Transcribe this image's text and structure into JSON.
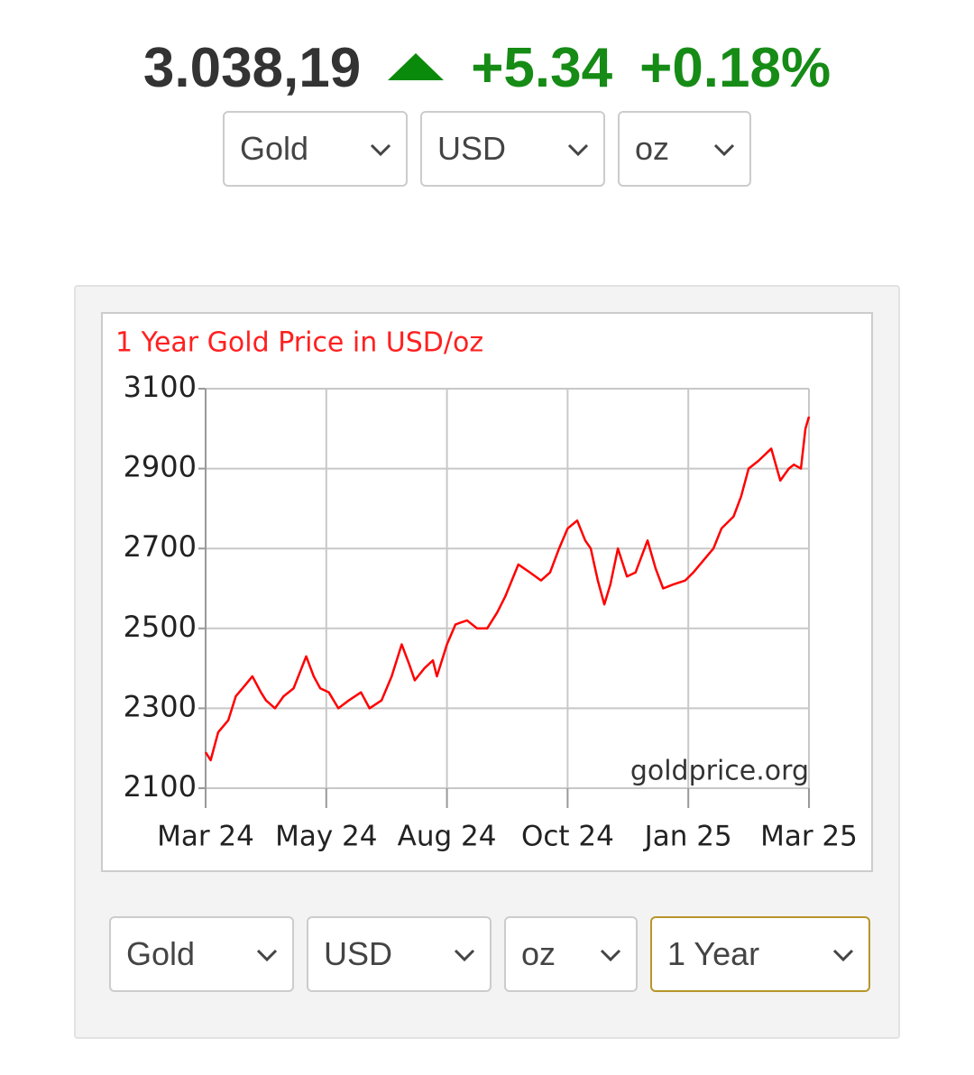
{
  "header": {
    "price": "3.038,19",
    "change": "+5.34",
    "change_percent": "+0.18%"
  },
  "top_selects": [
    "Gold",
    "USD",
    "oz"
  ],
  "bottom_selects": [
    "Gold",
    "USD",
    "oz",
    "1 Year"
  ],
  "chart_data": {
    "type": "line",
    "title": "1 Year Gold Price in USD/oz",
    "watermark": "goldprice.org",
    "x": [
      0,
      0.1,
      0.25,
      0.45,
      0.6,
      0.8,
      0.93,
      1.1,
      1.2,
      1.38,
      1.55,
      1.75,
      2.0,
      2.15,
      2.28,
      2.45,
      2.64,
      2.85,
      3.09,
      3.26,
      3.5,
      3.7,
      3.9,
      4.05,
      4.16,
      4.35,
      4.52,
      4.6,
      4.8,
      4.97,
      5.2,
      5.4,
      5.6,
      5.8,
      5.96,
      6.22,
      6.45,
      6.67,
      6.85,
      7.03,
      7.2,
      7.39,
      7.55,
      7.66,
      7.8,
      7.93,
      8.05,
      8.2,
      8.38,
      8.55,
      8.79,
      8.95,
      9.1,
      9.3,
      9.54,
      9.7,
      9.9,
      10.1,
      10.26,
      10.5,
      10.65,
      10.8,
      11.0,
      11.25,
      11.43,
      11.6,
      11.7,
      11.84,
      11.93,
      12
    ],
    "values": [
      2190,
      2170,
      2240,
      2270,
      2330,
      2360,
      2380,
      2340,
      2320,
      2300,
      2330,
      2350,
      2430,
      2380,
      2350,
      2340,
      2300,
      2320,
      2340,
      2300,
      2320,
      2380,
      2460,
      2410,
      2370,
      2400,
      2420,
      2380,
      2460,
      2510,
      2520,
      2500,
      2500,
      2540,
      2580,
      2660,
      2640,
      2620,
      2640,
      2700,
      2750,
      2770,
      2720,
      2700,
      2620,
      2560,
      2610,
      2700,
      2630,
      2640,
      2720,
      2650,
      2600,
      2610,
      2620,
      2640,
      2670,
      2700,
      2750,
      2780,
      2830,
      2900,
      2920,
      2950,
      2870,
      2900,
      2910,
      2900,
      3000,
      3030
    ],
    "color": "#ff0000",
    "xlim": [
      0,
      12
    ],
    "xticks": [
      {
        "value": 0,
        "label": "Mar 24"
      },
      {
        "value": 2.4,
        "label": "May 24"
      },
      {
        "value": 4.8,
        "label": "Aug 24"
      },
      {
        "value": 7.2,
        "label": "Oct 24"
      },
      {
        "value": 9.6,
        "label": "Jan 25"
      },
      {
        "value": 12,
        "label": "Mar 25"
      }
    ],
    "ylim": [
      2100,
      3100
    ],
    "yticks": [
      2100,
      2300,
      2500,
      2700,
      2900,
      3100
    ],
    "grid": true
  }
}
